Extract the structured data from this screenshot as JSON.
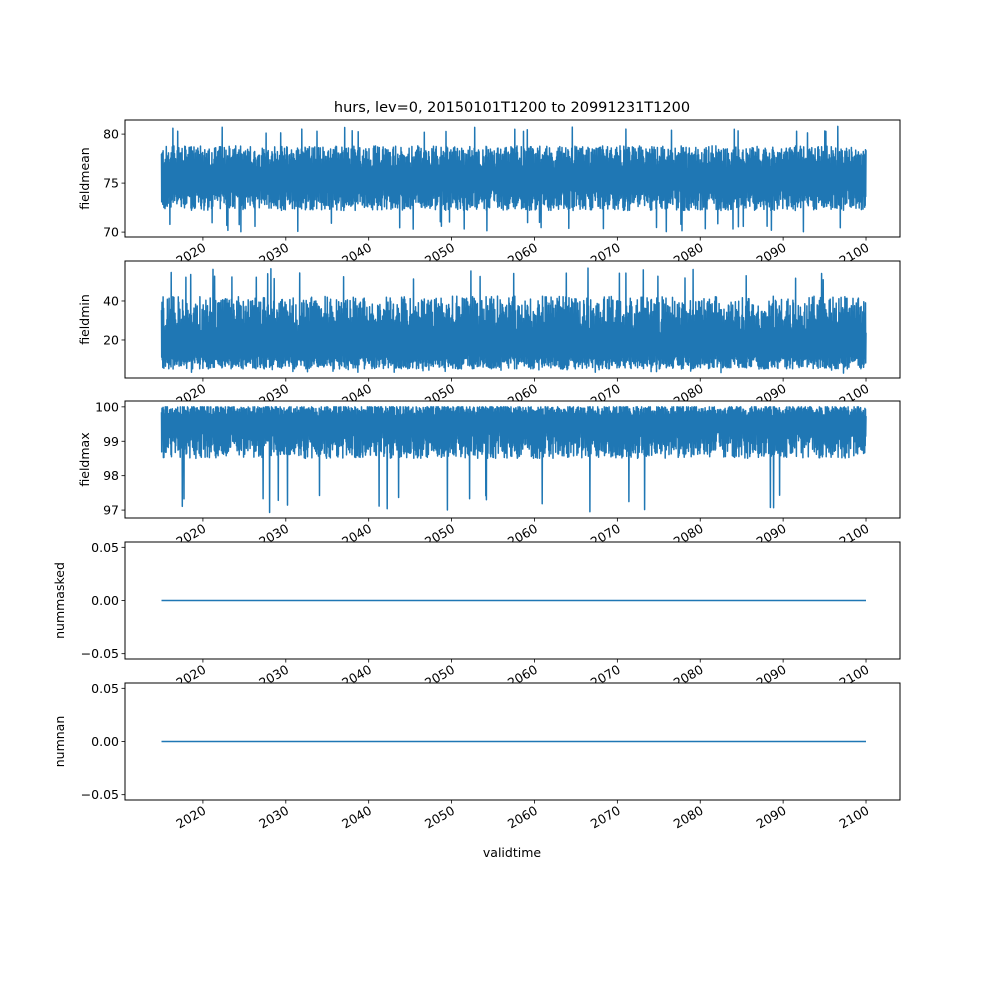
{
  "chart_data": {
    "type": "line",
    "title": "hurs, lev=0, 20150101T1200 to 20991231T1200",
    "xlabel": "validtime",
    "xlim": [
      2010.6,
      2104.1
    ],
    "x_range": [
      2015.0,
      2100.0
    ],
    "xticks": [
      2020,
      2030,
      2040,
      2050,
      2060,
      2070,
      2080,
      2090,
      2100
    ],
    "xtick_labels": [
      "2020",
      "2030",
      "2040",
      "2050",
      "2060",
      "2070",
      "2080",
      "2090",
      "2100"
    ],
    "line_color": "#1f77b4",
    "panels": [
      {
        "ylabel": "fieldmean",
        "ylim": [
          69.5,
          81.44
        ],
        "yticks": [
          70,
          75,
          80
        ],
        "ytick_labels": [
          "70",
          "75",
          "80"
        ],
        "series": {
          "kind": "noisy",
          "center": 75.5,
          "typical_low": 72.5,
          "typical_high": 78.5,
          "min": 70.0,
          "max": 80.9
        }
      },
      {
        "ylabel": "fieldmin",
        "ylim": [
          0.5,
          60.5
        ],
        "yticks": [
          20,
          40
        ],
        "ytick_labels": [
          "20",
          "40"
        ],
        "series": {
          "kind": "noisy",
          "center": 15,
          "typical_low": 6,
          "typical_high": 40,
          "min": 3,
          "max": 57
        }
      },
      {
        "ylabel": "fieldmax",
        "ylim": [
          96.77,
          100.17
        ],
        "yticks": [
          97,
          98,
          99,
          100
        ],
        "ytick_labels": [
          "97",
          "98",
          "99",
          "100"
        ],
        "series": {
          "kind": "noisy",
          "center": 99.6,
          "typical_low": 98.6,
          "typical_high": 100.0,
          "min": 96.9,
          "max": 100.0
        }
      },
      {
        "ylabel": "nummasked",
        "ylim": [
          -0.055,
          0.055
        ],
        "yticks": [
          -0.05,
          0.0,
          0.05
        ],
        "ytick_labels": [
          "−0.05",
          "0.00",
          "0.05"
        ],
        "series": {
          "kind": "constant",
          "value": 0
        }
      },
      {
        "ylabel": "numnan",
        "ylim": [
          -0.055,
          0.055
        ],
        "yticks": [
          -0.05,
          0.0,
          0.05
        ],
        "ytick_labels": [
          "−0.05",
          "0.00",
          "0.05"
        ],
        "series": {
          "kind": "constant",
          "value": 0
        }
      }
    ]
  }
}
